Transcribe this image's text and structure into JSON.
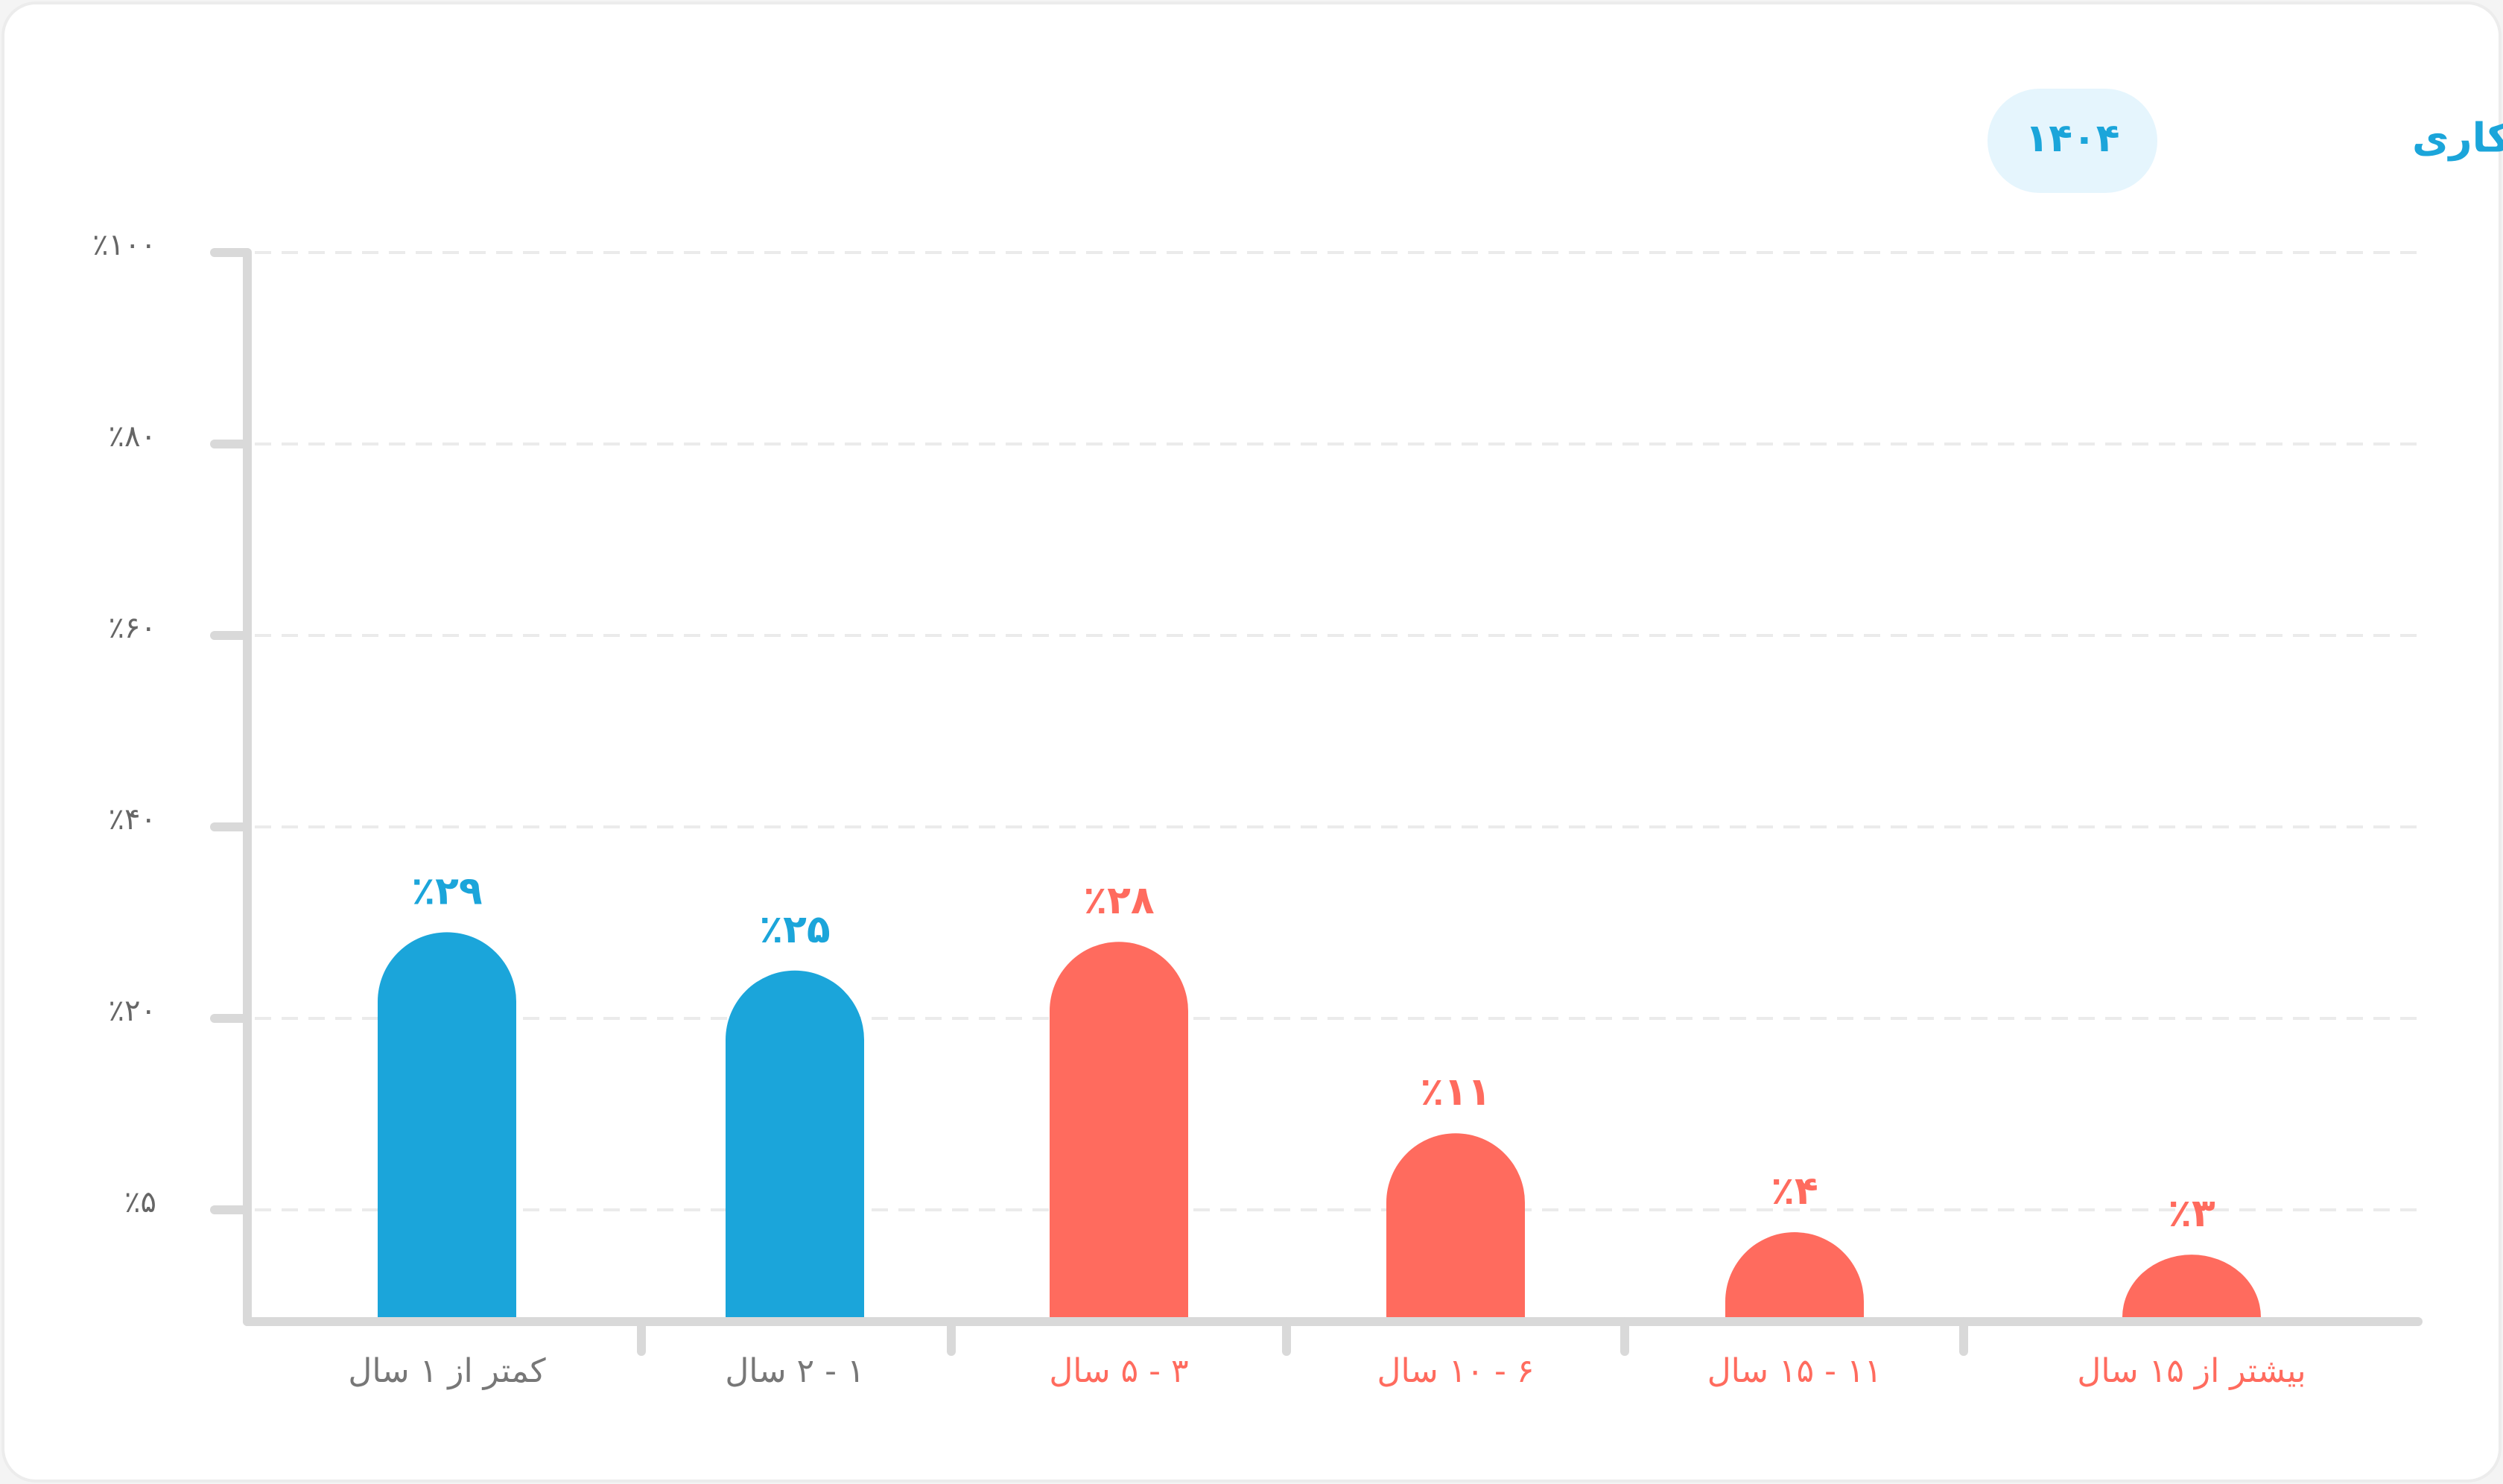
{
  "chart_data": {
    "type": "bar",
    "title": "تجربه کاری",
    "subtitle": "۱۴۰۴",
    "categories": [
      "کمتر از ۱ سال",
      "۱ - ۲ سال",
      "۳ - ۵ سال",
      "۶ - ۱۰ سال",
      "۱۱ - ۱۵ سال",
      "بیشتر از ۱۵ سال"
    ],
    "values": [
      29,
      25,
      28,
      11,
      4,
      3
    ],
    "value_labels": [
      "٪۲۹",
      "٪۲۵",
      "٪۲۸",
      "٪۱۱",
      "٪۴",
      "٪۳"
    ],
    "colors": [
      "#1ba5da",
      "#1ba5da",
      "#ff6b5e",
      "#ff6b5e",
      "#ff6b5e",
      "#ff6b5e"
    ],
    "ylim": [
      0,
      100
    ],
    "yticks": [
      {
        "value": 5,
        "label": "٪۵"
      },
      {
        "value": 20,
        "label": "٪۲۰"
      },
      {
        "value": 40,
        "label": "٪۴۰"
      },
      {
        "value": 60,
        "label": "٪۶۰"
      },
      {
        "value": 80,
        "label": "٪۸۰"
      },
      {
        "value": 100,
        "label": "٪۱۰۰"
      }
    ],
    "grid": true
  }
}
